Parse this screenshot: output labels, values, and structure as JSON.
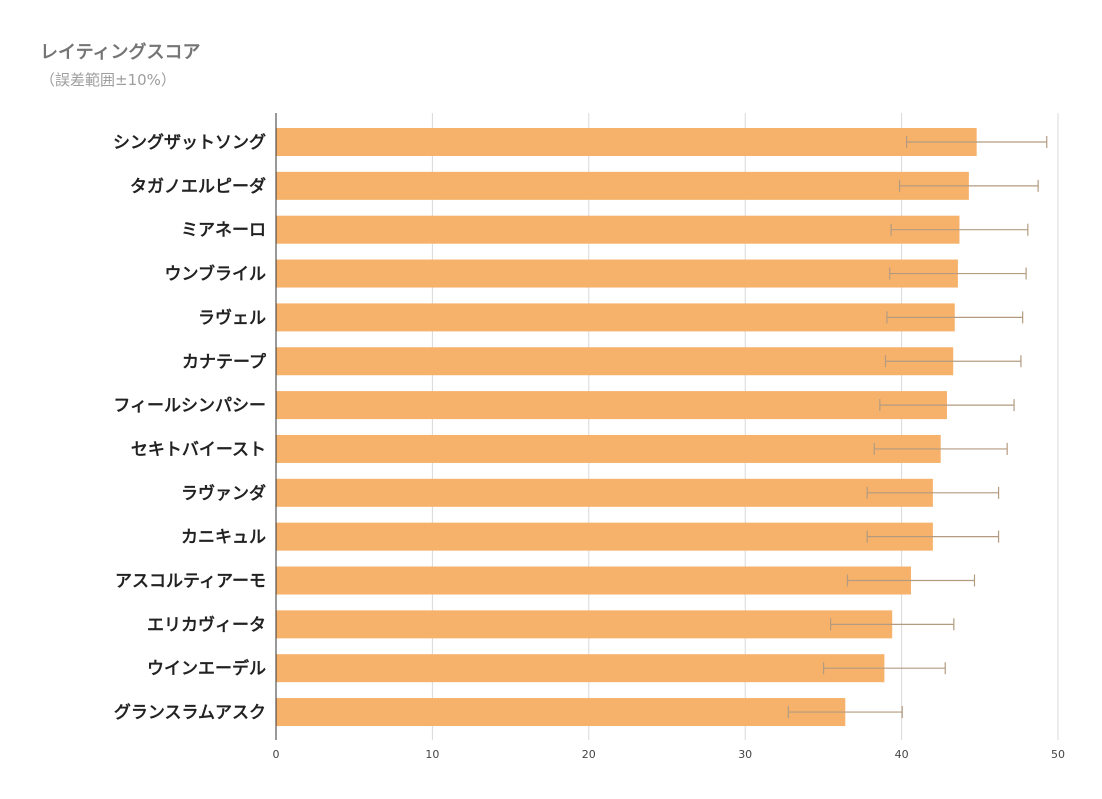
{
  "chart_data": {
    "type": "bar",
    "orientation": "horizontal",
    "title": "レイティングスコア",
    "subtitle": "（誤差範囲±10%）",
    "categories": [
      "シングザットソング",
      "タガノエルピーダ",
      "ミアネーロ",
      "ウンブライル",
      "ラヴェル",
      "カナテープ",
      "フィールシンパシー",
      "セキトバイースト",
      "ラヴァンダ",
      "カニキュル",
      "アスコルティアーモ",
      "エリカヴィータ",
      "ウインエーデル",
      "グランスラムアスク"
    ],
    "values": [
      44.8,
      44.3,
      43.7,
      43.6,
      43.4,
      43.3,
      42.9,
      42.5,
      42.0,
      42.0,
      40.6,
      39.4,
      38.9,
      36.4
    ],
    "error_pct": 0.1,
    "xlim": [
      0,
      50
    ],
    "xticks": [
      0,
      10,
      20,
      30,
      40,
      50
    ],
    "grid": true,
    "colors": {
      "bar": "#f6b26b",
      "error": "#b49b80",
      "grid": "#d9d9d9",
      "axis": "#333333"
    }
  }
}
